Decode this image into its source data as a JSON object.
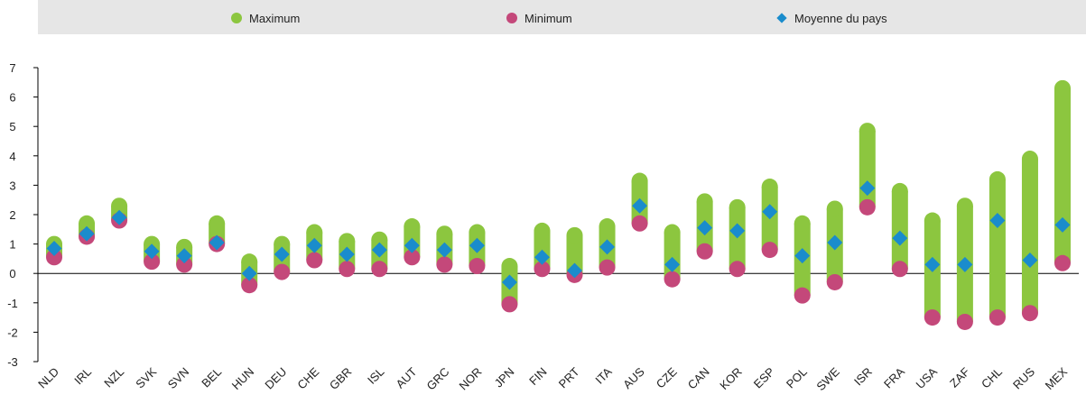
{
  "chart_data": {
    "type": "range",
    "categories": [
      "NLD",
      "IRL",
      "NZL",
      "SVK",
      "SVN",
      "BEL",
      "HUN",
      "DEU",
      "CHE",
      "GBR",
      "ISL",
      "AUT",
      "GRC",
      "NOR",
      "JPN",
      "FIN",
      "PRT",
      "ITA",
      "AUS",
      "CZE",
      "CAN",
      "KOR",
      "ESP",
      "POL",
      "SWE",
      "ISR",
      "FRA",
      "USA",
      "ZAF",
      "CHL",
      "RUS",
      "MEX"
    ],
    "series": [
      {
        "name": "Maximum",
        "color": "#8cc63f",
        "values": [
          1.0,
          1.7,
          2.3,
          1.0,
          0.9,
          1.7,
          0.4,
          1.0,
          1.4,
          1.1,
          1.15,
          1.6,
          1.35,
          1.4,
          0.25,
          1.45,
          1.3,
          1.6,
          3.15,
          1.4,
          2.45,
          2.25,
          2.95,
          1.7,
          2.2,
          4.85,
          2.8,
          1.8,
          2.3,
          3.2,
          3.9,
          6.3
        ]
      },
      {
        "name": "Minimum",
        "color": "#c4487a",
        "values": [
          0.55,
          1.25,
          1.8,
          0.4,
          0.3,
          1.0,
          -0.4,
          0.05,
          0.45,
          0.15,
          0.15,
          0.55,
          0.3,
          0.25,
          -1.05,
          0.15,
          -0.05,
          0.2,
          1.7,
          -0.2,
          0.75,
          0.15,
          0.8,
          -0.75,
          -0.3,
          2.25,
          0.15,
          -1.5,
          -1.65,
          -1.5,
          -1.35,
          0.35
        ]
      },
      {
        "name": "Moyenne du pays",
        "color": "#1a8ccc",
        "values": [
          0.85,
          1.35,
          1.9,
          0.75,
          0.6,
          1.05,
          0.0,
          0.65,
          0.95,
          0.65,
          0.8,
          0.95,
          0.8,
          0.95,
          -0.3,
          0.55,
          0.1,
          0.9,
          2.3,
          0.3,
          1.55,
          1.45,
          2.1,
          0.6,
          1.05,
          2.9,
          1.2,
          0.3,
          0.3,
          1.8,
          0.45,
          1.65
        ]
      }
    ],
    "ylim": [
      -3,
      7
    ],
    "yticks": [
      -3,
      -2,
      -1,
      0,
      1,
      2,
      3,
      4,
      5,
      6,
      7
    ]
  }
}
